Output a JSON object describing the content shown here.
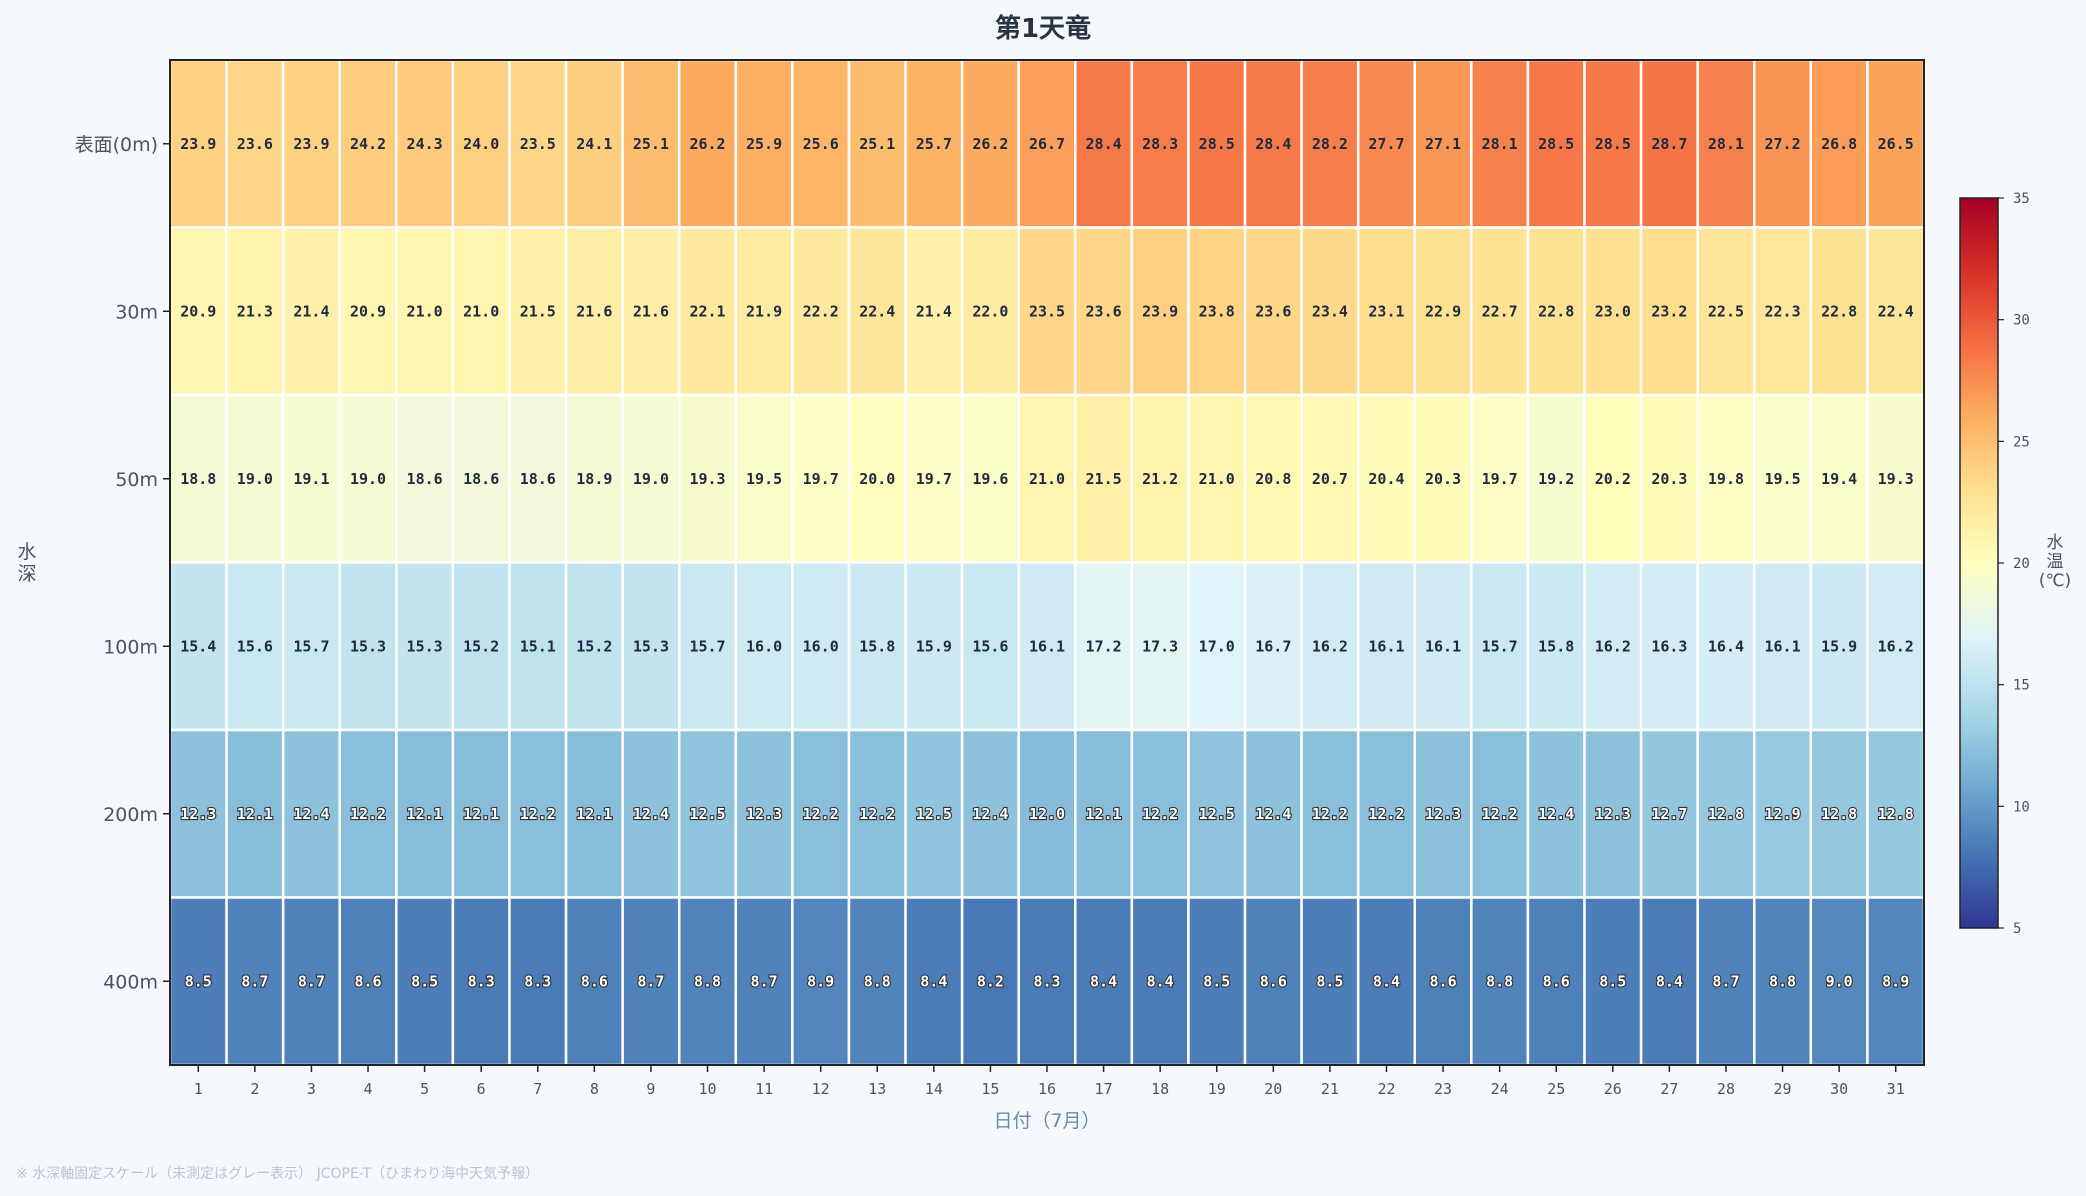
{
  "chart_data": {
    "type": "heatmap",
    "title": "第1天竜",
    "xlabel": "日付（7月）",
    "ylabel": "水深",
    "colorbar_label": "水温(℃)",
    "colorbar_range": [
      5,
      35
    ],
    "colorbar_ticks": [
      "35",
      "30",
      "25",
      "20",
      "15",
      "10",
      "5"
    ],
    "colormap": [
      "#313695",
      "#4575b4",
      "#74add1",
      "#abd9e9",
      "#e0f3f8",
      "#ffffbf",
      "#fee090",
      "#fdae61",
      "#f46d43",
      "#d73027",
      "#a50026"
    ],
    "x": [
      "1",
      "2",
      "3",
      "4",
      "5",
      "6",
      "7",
      "8",
      "9",
      "10",
      "11",
      "12",
      "13",
      "14",
      "15",
      "16",
      "17",
      "18",
      "19",
      "20",
      "21",
      "22",
      "23",
      "24",
      "25",
      "26",
      "27",
      "28",
      "29",
      "30",
      "31"
    ],
    "y": [
      "表面(0m)",
      "30m",
      "50m",
      "100m",
      "200m",
      "400m"
    ],
    "values": [
      [
        "23.9",
        "23.6",
        "23.9",
        "24.2",
        "24.3",
        "24.0",
        "23.5",
        "24.1",
        "25.1",
        "26.2",
        "25.9",
        "25.6",
        "25.1",
        "25.7",
        "26.2",
        "26.7",
        "28.4",
        "28.3",
        "28.5",
        "28.4",
        "28.2",
        "27.7",
        "27.1",
        "28.1",
        "28.5",
        "28.5",
        "28.7",
        "28.1",
        "27.2",
        "26.8",
        "26.5"
      ],
      [
        "20.9",
        "21.3",
        "21.4",
        "20.9",
        "21.0",
        "21.0",
        "21.5",
        "21.6",
        "21.6",
        "22.1",
        "21.9",
        "22.2",
        "22.4",
        "21.4",
        "22.0",
        "23.5",
        "23.6",
        "23.9",
        "23.8",
        "23.6",
        "23.4",
        "23.1",
        "22.9",
        "22.7",
        "22.8",
        "23.0",
        "23.2",
        "22.5",
        "22.3",
        "22.8",
        "22.4"
      ],
      [
        "18.8",
        "19.0",
        "19.1",
        "19.0",
        "18.6",
        "18.6",
        "18.6",
        "18.9",
        "19.0",
        "19.3",
        "19.5",
        "19.7",
        "20.0",
        "19.7",
        "19.6",
        "21.0",
        "21.5",
        "21.2",
        "21.0",
        "20.8",
        "20.7",
        "20.4",
        "20.3",
        "19.7",
        "19.2",
        "20.2",
        "20.3",
        "19.8",
        "19.5",
        "19.4",
        "19.3"
      ],
      [
        "15.4",
        "15.6",
        "15.7",
        "15.3",
        "15.3",
        "15.2",
        "15.1",
        "15.2",
        "15.3",
        "15.7",
        "16.0",
        "16.0",
        "15.8",
        "15.9",
        "15.6",
        "16.1",
        "17.2",
        "17.3",
        "17.0",
        "16.7",
        "16.2",
        "16.1",
        "16.1",
        "15.7",
        "15.8",
        "16.2",
        "16.3",
        "16.4",
        "16.1",
        "15.9",
        "16.2"
      ],
      [
        "12.3",
        "12.1",
        "12.4",
        "12.2",
        "12.1",
        "12.1",
        "12.2",
        "12.1",
        "12.4",
        "12.5",
        "12.3",
        "12.2",
        "12.2",
        "12.5",
        "12.4",
        "12.0",
        "12.1",
        "12.2",
        "12.5",
        "12.4",
        "12.2",
        "12.2",
        "12.3",
        "12.2",
        "12.4",
        "12.3",
        "12.7",
        "12.8",
        "12.9",
        "12.8",
        "12.8"
      ],
      [
        "8.5",
        "8.7",
        "8.7",
        "8.6",
        "8.5",
        "8.3",
        "8.3",
        "8.6",
        "8.7",
        "8.8",
        "8.7",
        "8.9",
        "8.8",
        "8.4",
        "8.2",
        "8.3",
        "8.4",
        "8.4",
        "8.5",
        "8.6",
        "8.5",
        "8.4",
        "8.6",
        "8.8",
        "8.6",
        "8.5",
        "8.4",
        "8.7",
        "8.8",
        "9.0",
        "8.9"
      ]
    ],
    "grid": false,
    "legend": "right colorbar"
  },
  "footnote": "※ 水深軸固定スケール（未測定はグレー表示） JCOPE-T（ひまわり海中天気予報）"
}
